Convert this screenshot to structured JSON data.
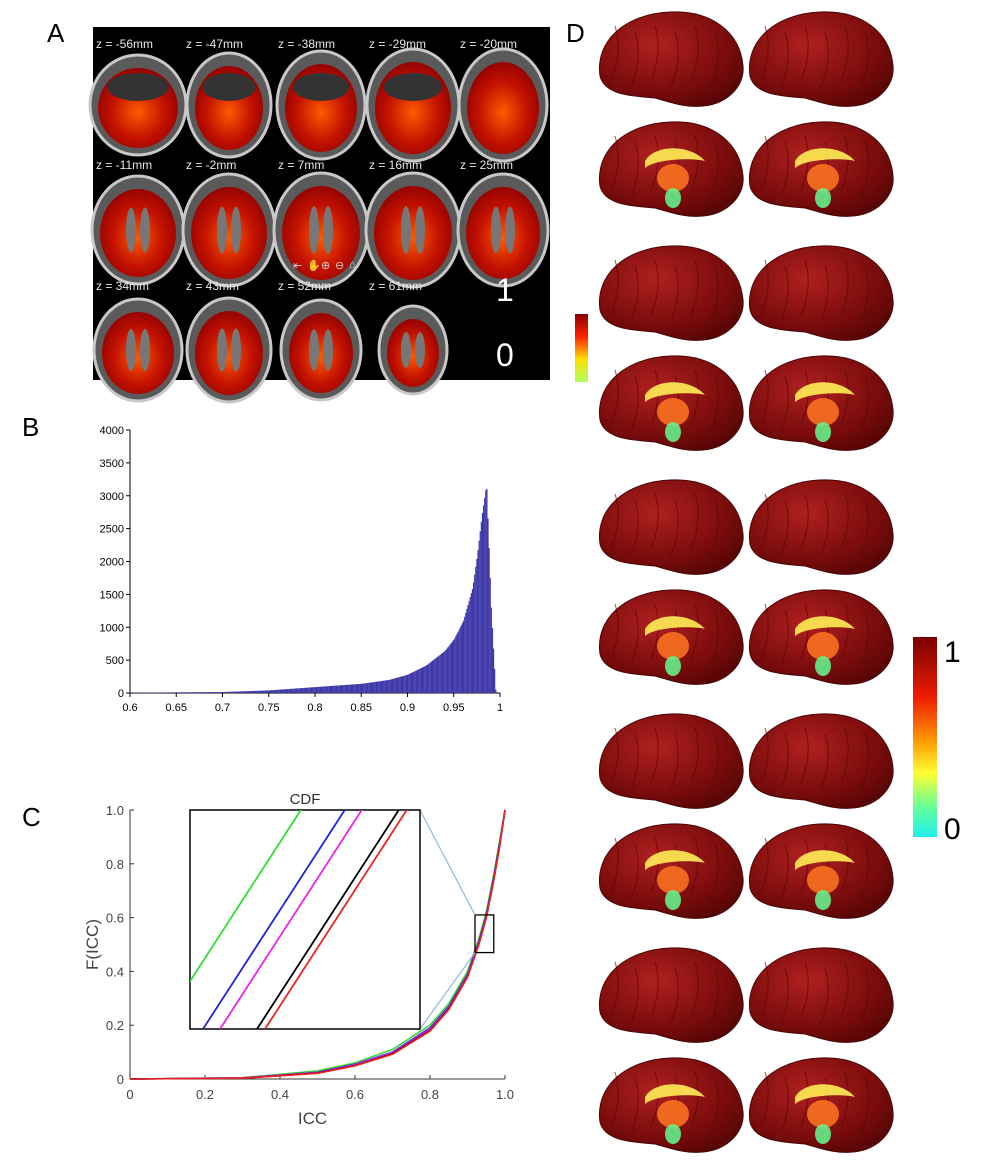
{
  "panels": {
    "A": "A",
    "B": "B",
    "C": "C",
    "D": "D"
  },
  "panelA": {
    "slices": [
      "z = -56mm",
      "z = -47mm",
      "z = -38mm",
      "z = -29mm",
      "z = -20mm",
      "z = -11mm",
      "z = -2mm",
      "z = 7mm",
      "z = 16mm",
      "z = 25mm",
      "z = 34mm",
      "z = 43mm",
      "z = 52mm",
      "z = 61mm"
    ],
    "colorbar": {
      "max": "1",
      "min": "0"
    },
    "controls": [
      "exit-icon",
      "hand-icon",
      "zoom-in-icon",
      "zoom-out-icon",
      "home-icon"
    ]
  },
  "panelD": {
    "colorbar": {
      "max": "1",
      "min": "0"
    }
  },
  "colors": {
    "hist_bar": "#3f38a8",
    "heat_dark": "#8b0000",
    "green": "#33dd33",
    "blue": "#2222dd",
    "magenta": "#ee22ee",
    "black": "#000000",
    "red": "#ee2222",
    "inset_connector": "#8fb7e0"
  },
  "chart_data": [
    {
      "type": "bar",
      "panel": "B",
      "xlim": [
        0.6,
        1.0
      ],
      "ylim": [
        0,
        4000
      ],
      "xticks": [
        "0.6",
        "0.65",
        "0.7",
        "0.75",
        "0.8",
        "0.85",
        "0.9",
        "0.95",
        "1"
      ],
      "yticks": [
        "0",
        "500",
        "1000",
        "1500",
        "2000",
        "2500",
        "3000",
        "3500",
        "4000"
      ],
      "x": [
        0.6,
        0.7,
        0.75,
        0.8,
        0.85,
        0.88,
        0.9,
        0.92,
        0.94,
        0.95,
        0.96,
        0.97,
        0.975,
        0.98,
        0.985,
        0.99,
        0.995
      ],
      "values": [
        5,
        15,
        40,
        90,
        140,
        200,
        280,
        420,
        640,
        820,
        1100,
        1600,
        2100,
        2700,
        3180,
        1300,
        0
      ]
    },
    {
      "type": "line",
      "panel": "C",
      "title": "",
      "xlabel": "ICC",
      "ylabel": "F(ICC)",
      "xlim": [
        0,
        1.0
      ],
      "ylim": [
        0,
        1.0
      ],
      "xticks": [
        "0",
        "0.2",
        "0.4",
        "0.6",
        "0.8",
        "1.0"
      ],
      "yticks": [
        "0",
        "0.2",
        "0.4",
        "0.6",
        "0.8",
        "1.0"
      ],
      "inset_title": "CDF",
      "inset_range": {
        "x": [
          0.92,
          0.97
        ],
        "y": [
          0.47,
          0.61
        ]
      },
      "series": [
        {
          "color": "#33dd33",
          "x": [
            0.0,
            0.3,
            0.5,
            0.6,
            0.7,
            0.8,
            0.85,
            0.9,
            0.93,
            0.95,
            0.97,
            0.985,
            1.0
          ],
          "values": [
            0.0,
            0.005,
            0.03,
            0.06,
            0.11,
            0.2,
            0.28,
            0.4,
            0.52,
            0.62,
            0.76,
            0.88,
            1.0
          ]
        },
        {
          "color": "#2222dd",
          "x": [
            0.0,
            0.3,
            0.5,
            0.6,
            0.7,
            0.8,
            0.85,
            0.9,
            0.93,
            0.95,
            0.97,
            0.985,
            1.0
          ],
          "values": [
            0.0,
            0.004,
            0.025,
            0.055,
            0.1,
            0.19,
            0.27,
            0.39,
            0.51,
            0.61,
            0.75,
            0.87,
            1.0
          ]
        },
        {
          "color": "#ee22ee",
          "x": [
            0.0,
            0.3,
            0.5,
            0.6,
            0.7,
            0.8,
            0.85,
            0.9,
            0.93,
            0.95,
            0.97,
            0.985,
            1.0
          ],
          "values": [
            0.0,
            0.004,
            0.024,
            0.053,
            0.098,
            0.185,
            0.265,
            0.385,
            0.505,
            0.605,
            0.745,
            0.865,
            1.0
          ]
        },
        {
          "color": "#000000",
          "x": [
            0.0,
            0.3,
            0.5,
            0.6,
            0.7,
            0.8,
            0.85,
            0.9,
            0.93,
            0.95,
            0.97,
            0.985,
            1.0
          ],
          "values": [
            0.0,
            0.003,
            0.022,
            0.05,
            0.094,
            0.18,
            0.26,
            0.38,
            0.5,
            0.6,
            0.74,
            0.86,
            1.0
          ]
        },
        {
          "color": "#ee2222",
          "x": [
            0.0,
            0.3,
            0.5,
            0.6,
            0.7,
            0.8,
            0.85,
            0.9,
            0.93,
            0.95,
            0.97,
            0.985,
            1.0
          ],
          "values": [
            0.0,
            0.003,
            0.021,
            0.049,
            0.092,
            0.178,
            0.258,
            0.378,
            0.498,
            0.598,
            0.738,
            0.858,
            1.0
          ]
        }
      ]
    }
  ]
}
